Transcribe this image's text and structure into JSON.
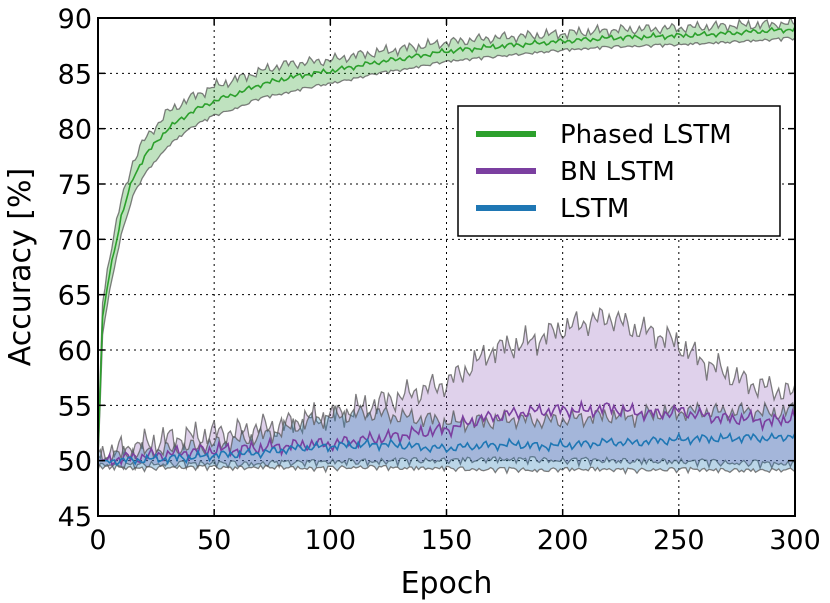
{
  "chart_data": {
    "type": "line",
    "title": "",
    "xlabel": "Epoch",
    "ylabel": "Accuracy [%]",
    "xlim": [
      0,
      300
    ],
    "ylim": [
      45,
      90
    ],
    "xticks": [
      "0",
      "50",
      "100",
      "150",
      "200",
      "250",
      "300"
    ],
    "yticks": [
      "45",
      "50",
      "55",
      "60",
      "65",
      "70",
      "75",
      "80",
      "85",
      "90"
    ],
    "grid": true,
    "legend_position": "upper-right",
    "series": [
      {
        "name": "Phased LSTM",
        "color": "#2ca02c",
        "band_color": "#2ca02c",
        "x": [
          0,
          2,
          5,
          10,
          15,
          20,
          30,
          40,
          50,
          60,
          70,
          80,
          90,
          100,
          110,
          120,
          130,
          150,
          170,
          200,
          220,
          250,
          270,
          300
        ],
        "mean": [
          50.5,
          63,
          67,
          72,
          75.5,
          77.5,
          80,
          81.5,
          82.5,
          83.2,
          84,
          84.5,
          84.9,
          85.2,
          85.6,
          86,
          86.3,
          87,
          87.4,
          87.9,
          88.2,
          88.4,
          88.6,
          89
        ],
        "upper": [
          51,
          64.5,
          68.5,
          73.5,
          77,
          79,
          81.5,
          82.8,
          83.8,
          84.5,
          85.2,
          85.8,
          86,
          86.2,
          86.6,
          86.9,
          87.2,
          87.8,
          88.2,
          88.6,
          88.9,
          89.1,
          89.3,
          89.5
        ],
        "lower": [
          50,
          61.5,
          65.5,
          70.5,
          74,
          76,
          78.5,
          80.2,
          81.3,
          82,
          82.9,
          83.3,
          83.8,
          84.2,
          84.6,
          85.1,
          85.4,
          86.2,
          86.6,
          87.2,
          87.5,
          87.7,
          87.9,
          88.3
        ]
      },
      {
        "name": "BN LSTM",
        "color": "#7b3fa0",
        "band_color": "#9467bd",
        "x": [
          0,
          10,
          20,
          30,
          40,
          50,
          60,
          70,
          80,
          90,
          100,
          110,
          120,
          130,
          140,
          150,
          160,
          170,
          180,
          190,
          200,
          210,
          220,
          230,
          240,
          250,
          260,
          270,
          280,
          290,
          300
        ],
        "mean": [
          50,
          50.2,
          50.4,
          50.6,
          50.8,
          51,
          51,
          51.2,
          51.3,
          51.5,
          51.5,
          51.8,
          52,
          52.3,
          52.6,
          52.8,
          53.5,
          54,
          54.3,
          54.5,
          54.6,
          54.5,
          54.8,
          54.4,
          54.2,
          54.5,
          54.1,
          53.8,
          53.8,
          53.5,
          54
        ],
        "upper": [
          50.5,
          51,
          51.5,
          52,
          52.2,
          52.5,
          52.6,
          53,
          53.2,
          53.8,
          54,
          54.6,
          55.2,
          55.8,
          56.4,
          57,
          58.5,
          60,
          60.5,
          61,
          62,
          62.5,
          63,
          62,
          61.5,
          60.5,
          59,
          58,
          57,
          56.5,
          56
        ],
        "lower": [
          49.8,
          49.8,
          49.9,
          50,
          50,
          50.1,
          50,
          50,
          50.1,
          50.1,
          50.2,
          50.2,
          50.2,
          50.3,
          50.3,
          50.3,
          50.3,
          50.4,
          50.4,
          50.4,
          50.3,
          50.3,
          50.3,
          50.2,
          50.2,
          50.2,
          50.2,
          50.1,
          50.1,
          50,
          50
        ]
      },
      {
        "name": "LSTM",
        "color": "#1f77b4",
        "band_color": "#1f77b4",
        "x": [
          0,
          10,
          20,
          30,
          40,
          50,
          60,
          70,
          80,
          90,
          100,
          110,
          120,
          130,
          140,
          150,
          160,
          170,
          180,
          190,
          200,
          210,
          220,
          230,
          240,
          250,
          260,
          270,
          280,
          290,
          300
        ],
        "mean": [
          50,
          50,
          50.1,
          50.2,
          50.3,
          50.5,
          50.6,
          50.7,
          51,
          51.2,
          51.3,
          51.4,
          51.5,
          51.4,
          51.2,
          51.1,
          51.3,
          51.4,
          51.5,
          51.3,
          51.4,
          51.5,
          51.7,
          51.6,
          51.8,
          51.9,
          52,
          52,
          52.1,
          52,
          52.3
        ],
        "upper": [
          50.3,
          50.5,
          50.8,
          51,
          51.2,
          51.5,
          51.8,
          52.2,
          52.8,
          53.5,
          54,
          54.2,
          54.3,
          54,
          53.8,
          53.5,
          53.5,
          53.6,
          53.8,
          53.6,
          53.7,
          53.9,
          54.1,
          54,
          54.3,
          54.4,
          54.5,
          54.4,
          54.5,
          54.3,
          54.6
        ],
        "lower": [
          49.7,
          49.6,
          49.5,
          49.6,
          49.6,
          49.6,
          49.5,
          49.6,
          49.6,
          49.5,
          49.5,
          49.6,
          49.6,
          49.5,
          49.5,
          49.5,
          49.4,
          49.4,
          49.4,
          49.3,
          49.4,
          49.4,
          49.4,
          49.3,
          49.4,
          49.4,
          49.4,
          49.3,
          49.3,
          49.3,
          49.4
        ]
      }
    ]
  }
}
